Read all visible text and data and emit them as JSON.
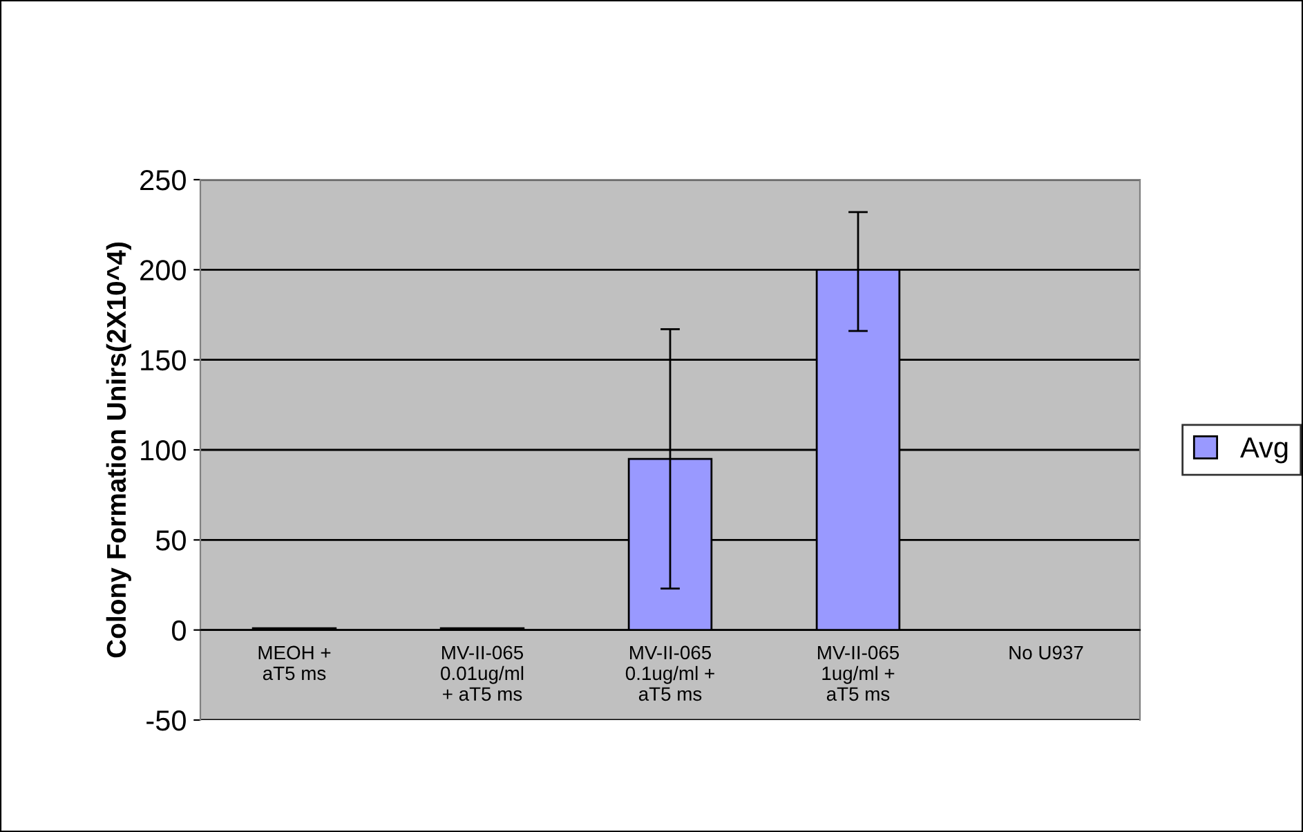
{
  "chart_data": {
    "type": "bar",
    "ylabel": "Colony Formation Unirs(2X10^4)",
    "categories": [
      "MEOH +\naT5 ms",
      "MV-II-065\n0.01ug/ml\n+ aT5 ms",
      "MV-II-065\n0.1ug/ml +\naT5 ms",
      "MV-II-065\n1ug/ml +\naT5 ms",
      "No U937"
    ],
    "series": [
      {
        "name": "Avg",
        "color": "#9999ff",
        "values": [
          1,
          1,
          95,
          200,
          null
        ],
        "errors": [
          null,
          null,
          [
            23,
            167
          ],
          [
            166,
            232
          ],
          null
        ]
      }
    ],
    "ylim": [
      -50,
      250
    ],
    "yticks": [
      -50,
      0,
      50,
      100,
      150,
      200,
      250
    ],
    "grid": "y",
    "legend": "right"
  }
}
